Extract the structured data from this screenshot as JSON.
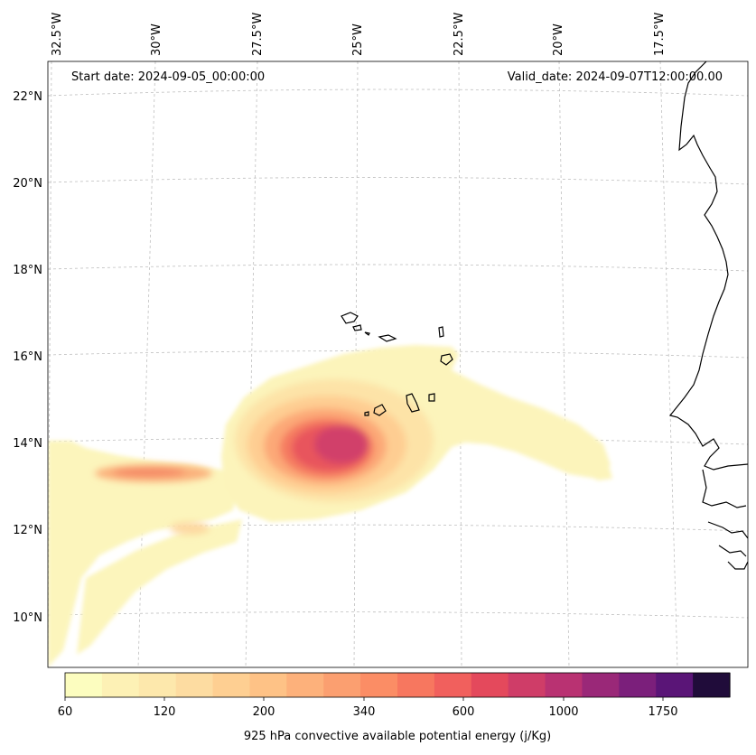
{
  "header": {
    "start_date": "Start date: 2024-09-05_00:00:00",
    "valid_date": "Valid_date: 2024-09-07T12:00:00.00"
  },
  "axes": {
    "lon_labels": [
      "32.5°W",
      "30°W",
      "27.5°W",
      "25°W",
      "22.5°W",
      "20°W",
      "17.5°W"
    ],
    "lat_labels": [
      "22°N",
      "20°N",
      "18°N",
      "16°N",
      "14°N",
      "12°N",
      "10°N"
    ]
  },
  "colorbar": {
    "label": "925 hPa convective available potential energy (j/Kg)",
    "tick_labels": [
      "60",
      "120",
      "200",
      "340",
      "600",
      "1000",
      "1750"
    ],
    "colors": [
      "#fcfdbf",
      "#fdf1b5",
      "#fde8ac",
      "#fddca1",
      "#fecf92",
      "#fec286",
      "#fdb17b",
      "#fb9f70",
      "#fb8d65",
      "#f7775f",
      "#f1605d",
      "#e4495c",
      "#cf3d68",
      "#b93272",
      "#9a2878",
      "#7b1f7b",
      "#5a1577",
      "#200c3a"
    ]
  },
  "map": {
    "islands": [
      "Santo Antão",
      "São Vicente",
      "Santa Luzia",
      "São Nicolau",
      "Sal",
      "Boa Vista",
      "Maio",
      "Santiago",
      "Fogo",
      "Brava"
    ]
  }
}
